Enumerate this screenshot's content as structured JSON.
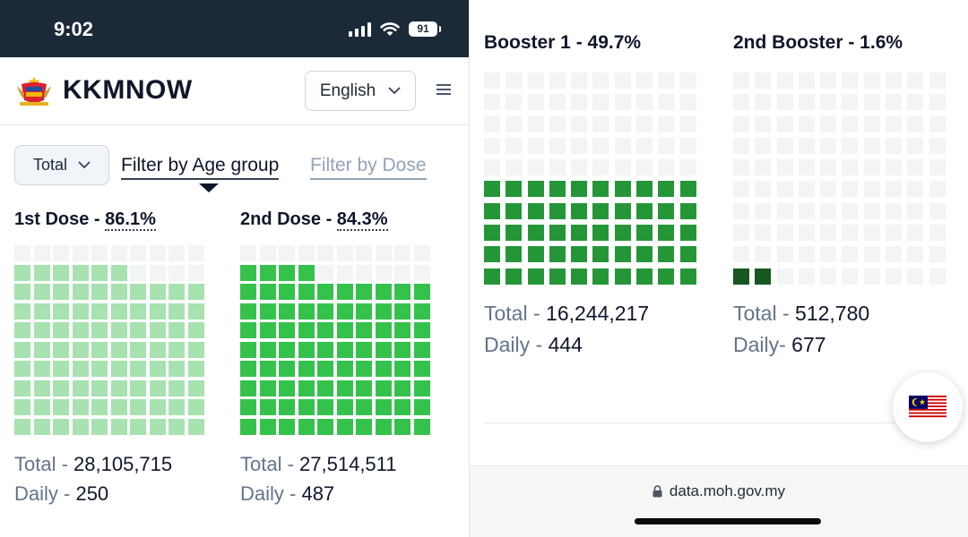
{
  "status_bar": {
    "time": "9:02",
    "battery": "91"
  },
  "header": {
    "brand": "KKMNOW",
    "language": "English"
  },
  "filters": {
    "select_value": "Total",
    "tab_age": "Filter by Age group",
    "tab_dose": "Filter by Dose"
  },
  "colors": {
    "light_green": "#a7e2b0",
    "mid_green": "#34c24c",
    "dark_green": "#259638",
    "darkest_green": "#16581f",
    "empty": "#f3f4f6"
  },
  "doses": [
    {
      "label": "1st Dose - ",
      "percent": "86.1%",
      "fraction": 0.861,
      "total_label": "Total - ",
      "total": "28,105,715",
      "daily_label": "Daily - ",
      "daily": "250"
    },
    {
      "label": "2nd Dose - ",
      "percent": "84.3%",
      "fraction": 0.843,
      "total_label": "Total - ",
      "total": "27,514,511",
      "daily_label": "Daily - ",
      "daily": "487"
    },
    {
      "label": "Booster 1 - 49.7%",
      "fraction": 0.497,
      "total_label": "Total - ",
      "total": "16,244,217",
      "daily_label": "Daily - ",
      "daily": "444"
    },
    {
      "label": "2nd Booster - 1.6%",
      "fraction": 0.016,
      "total_label": "Total - ",
      "total": "512,780",
      "daily_label": "Daily- ",
      "daily": "677"
    }
  ],
  "browser": {
    "url": "data.moh.gov.my"
  },
  "icons": {
    "logo": "malaysia-coat-of-arms",
    "flag": "malaysia-flag",
    "menu": "hamburger",
    "lock": "lock"
  }
}
